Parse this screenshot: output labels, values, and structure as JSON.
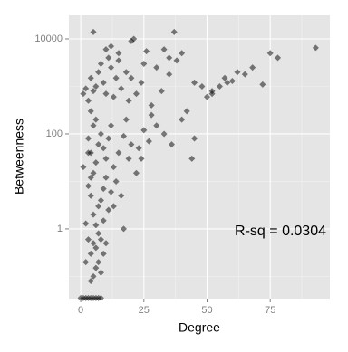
{
  "chart_data": {
    "type": "scatter",
    "x_label": "Degree",
    "y_label": "Betweenness",
    "annotation": "R-sq = 0.0304",
    "color": "#000000",
    "ylog": true,
    "grid": true,
    "xlim": [
      -4.7,
      98.6
    ],
    "ylim": [
      0.034,
      31300
    ],
    "xticks": [
      0,
      25,
      50,
      75
    ],
    "yticks": [
      1,
      100,
      10000
    ],
    "x_minor_ticks": [
      12.5,
      37.5,
      62.5,
      87.5
    ],
    "y_minor_ticks": [
      0.1,
      10,
      1000
    ],
    "x": [
      0,
      1,
      2,
      3,
      4,
      5,
      6,
      7,
      8,
      4,
      5,
      6,
      7,
      8,
      4,
      5,
      6,
      7,
      9,
      3,
      8,
      10,
      6,
      5,
      7,
      4,
      8,
      3,
      9,
      11,
      12,
      10,
      5,
      6,
      4,
      7,
      3,
      8,
      5,
      6,
      4,
      9,
      10,
      11,
      12,
      13,
      14,
      15,
      16,
      17,
      18,
      20,
      22,
      24,
      25,
      27,
      30,
      33,
      36,
      40,
      45,
      3,
      5,
      6,
      4,
      7,
      8,
      9,
      10,
      11,
      12,
      13,
      14,
      15,
      16,
      18,
      19,
      20,
      21,
      22,
      24,
      25,
      28,
      30,
      32,
      35,
      37,
      38,
      40,
      42,
      45,
      48,
      50,
      52,
      55,
      57,
      60,
      62,
      65,
      68,
      72,
      75,
      78,
      93,
      5,
      10,
      12,
      15,
      20,
      26,
      33,
      35,
      1,
      2,
      2,
      1,
      2,
      3,
      4,
      9,
      13,
      17,
      19,
      23,
      28,
      44,
      52,
      58
    ],
    "values": [
      0.035,
      0.035,
      0.035,
      0.035,
      0.035,
      0.035,
      0.035,
      0.035,
      0.035,
      0.08,
      0.1,
      0.15,
      0.2,
      0.12,
      0.3,
      0.5,
      0.4,
      0.8,
      0.3,
      0.6,
      0.6,
      0.5,
      1.2,
      2,
      3,
      5,
      4,
      8,
      1.5,
      2.5,
      6,
      12,
      15,
      25,
      40,
      60,
      80,
      100,
      150,
      200,
      300,
      50,
      30,
      80,
      150,
      20,
      10,
      40,
      5,
      90,
      200,
      60,
      15,
      30,
      120,
      70,
      150,
      100,
      60,
      200,
      80,
      500,
      800,
      1000,
      1500,
      2000,
      3000,
      1200,
      700,
      4000,
      2500,
      600,
      1500,
      3500,
      900,
      2000,
      500,
      1500,
      10000,
      700,
      1200,
      3000,
      400,
      2500,
      800,
      1800,
      14000,
      3500,
      5000,
      300,
      1200,
      1000,
      600,
      800,
      1000,
      1500,
      1300,
      2000,
      1800,
      2500,
      1100,
      5000,
      4000,
      6500,
      14000,
      6000,
      7000,
      5000,
      9000,
      5500,
      6000,
      4000,
      20,
      1.3,
      0.2,
      700,
      900,
      40,
      12,
      7,
      3,
      1,
      30,
      50,
      250,
      30,
      700,
      1200
    ]
  }
}
